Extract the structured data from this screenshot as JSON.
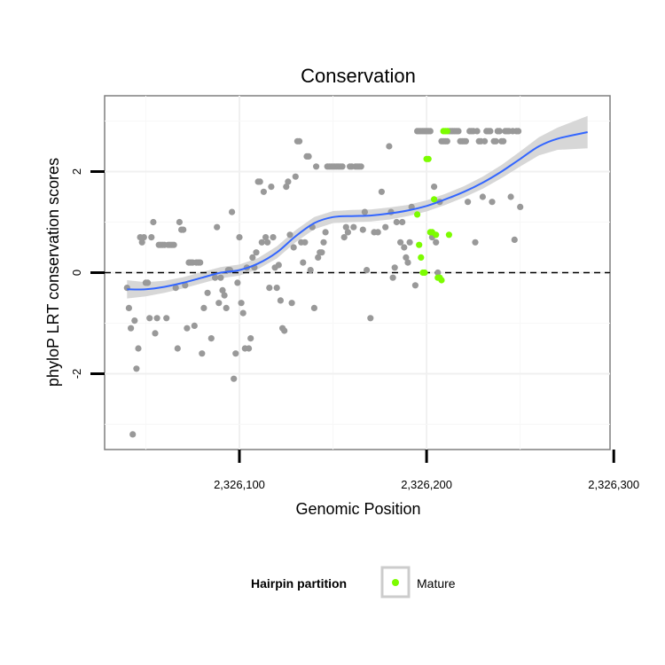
{
  "chart_data": {
    "type": "scatter",
    "title": "Conservation",
    "xlabel": "Genomic Position",
    "ylabel": "phyloP LRT conservation scores",
    "xlim": [
      2326028,
      2326298
    ],
    "ylim": [
      -3.5,
      3.5
    ],
    "x_ticks": [
      {
        "value": 2326100,
        "label": "2,326,100"
      },
      {
        "value": 2326200,
        "label": "2,326,200"
      },
      {
        "value": 2326300,
        "label": "2,326,300"
      }
    ],
    "y_ticks": [
      {
        "value": -2,
        "label": "-2"
      },
      {
        "value": 0,
        "label": "0"
      },
      {
        "value": 2,
        "label": "2"
      }
    ],
    "grid": true,
    "reference_line": {
      "y": 0,
      "style": "dashed"
    },
    "legend": {
      "title": "Hairpin partition",
      "position": "bottom",
      "entries": [
        {
          "name": "Mature",
          "color": "#7CFC00"
        }
      ]
    },
    "colors": {
      "other": "#999999",
      "mature": "#7CFC00",
      "smooth": "#3366FF",
      "band": "#D3D3D3"
    },
    "series": [
      {
        "group": "other",
        "points": [
          [
            2326040,
            -0.3
          ],
          [
            2326041,
            -0.7
          ],
          [
            2326042,
            -1.1
          ],
          [
            2326043,
            -3.2
          ],
          [
            2326044,
            -0.95
          ],
          [
            2326045,
            -1.9
          ],
          [
            2326046,
            -1.5
          ],
          [
            2326047,
            0.7
          ],
          [
            2326048,
            0.6
          ],
          [
            2326049,
            0.7
          ],
          [
            2326050,
            -0.2
          ],
          [
            2326051,
            -0.2
          ],
          [
            2326052,
            -0.9
          ],
          [
            2326053,
            0.7
          ],
          [
            2326054,
            1.0
          ],
          [
            2326055,
            -1.2
          ],
          [
            2326056,
            -0.9
          ],
          [
            2326057,
            0.55
          ],
          [
            2326058,
            0.55
          ],
          [
            2326059,
            0.55
          ],
          [
            2326060,
            0.55
          ],
          [
            2326061,
            -0.9
          ],
          [
            2326062,
            0.55
          ],
          [
            2326063,
            0.55
          ],
          [
            2326064,
            0.55
          ],
          [
            2326065,
            0.55
          ],
          [
            2326066,
            -0.3
          ],
          [
            2326067,
            -1.5
          ],
          [
            2326068,
            1.0
          ],
          [
            2326069,
            0.85
          ],
          [
            2326070,
            0.85
          ],
          [
            2326071,
            -0.25
          ],
          [
            2326072,
            -1.1
          ],
          [
            2326073,
            0.2
          ],
          [
            2326074,
            0.2
          ],
          [
            2326075,
            0.2
          ],
          [
            2326076,
            -1.05
          ],
          [
            2326077,
            0.2
          ],
          [
            2326078,
            0.2
          ],
          [
            2326079,
            0.2
          ],
          [
            2326080,
            -1.6
          ],
          [
            2326081,
            -0.7
          ],
          [
            2326083,
            -0.4
          ],
          [
            2326085,
            -1.3
          ],
          [
            2326087,
            -0.1
          ],
          [
            2326088,
            0.9
          ],
          [
            2326089,
            -0.6
          ],
          [
            2326090,
            -0.1
          ],
          [
            2326091,
            -0.35
          ],
          [
            2326092,
            -0.45
          ],
          [
            2326093,
            -0.7
          ],
          [
            2326094,
            0.05
          ],
          [
            2326095,
            0.05
          ],
          [
            2326096,
            1.2
          ],
          [
            2326097,
            -2.1
          ],
          [
            2326098,
            -1.6
          ],
          [
            2326099,
            -0.2
          ],
          [
            2326100,
            0.7
          ],
          [
            2326101,
            -0.6
          ],
          [
            2326102,
            -0.8
          ],
          [
            2326103,
            -1.5
          ],
          [
            2326104,
            0.1
          ],
          [
            2326105,
            -1.5
          ],
          [
            2326106,
            -1.3
          ],
          [
            2326107,
            0.3
          ],
          [
            2326108,
            0.1
          ],
          [
            2326109,
            0.4
          ],
          [
            2326110,
            1.8
          ],
          [
            2326111,
            1.8
          ],
          [
            2326112,
            0.6
          ],
          [
            2326113,
            1.6
          ],
          [
            2326114,
            0.7
          ],
          [
            2326115,
            0.6
          ],
          [
            2326116,
            -0.3
          ],
          [
            2326117,
            1.7
          ],
          [
            2326118,
            0.7
          ],
          [
            2326119,
            0.1
          ],
          [
            2326120,
            -0.3
          ],
          [
            2326121,
            0.15
          ],
          [
            2326122,
            -0.55
          ],
          [
            2326123,
            -1.1
          ],
          [
            2326124,
            -1.15
          ],
          [
            2326125,
            1.7
          ],
          [
            2326126,
            1.8
          ],
          [
            2326127,
            0.75
          ],
          [
            2326128,
            -0.6
          ],
          [
            2326129,
            0.5
          ],
          [
            2326130,
            1.9
          ],
          [
            2326131,
            2.6
          ],
          [
            2326132,
            2.6
          ],
          [
            2326133,
            0.6
          ],
          [
            2326134,
            0.2
          ],
          [
            2326135,
            0.6
          ],
          [
            2326136,
            2.3
          ],
          [
            2326137,
            2.3
          ],
          [
            2326138,
            0.05
          ],
          [
            2326139,
            0.9
          ],
          [
            2326140,
            -0.7
          ],
          [
            2326141,
            2.1
          ],
          [
            2326142,
            0.3
          ],
          [
            2326143,
            0.4
          ],
          [
            2326144,
            0.4
          ],
          [
            2326145,
            0.6
          ],
          [
            2326146,
            0.8
          ],
          [
            2326147,
            2.1
          ],
          [
            2326148,
            2.1
          ],
          [
            2326149,
            2.1
          ],
          [
            2326150,
            2.1
          ],
          [
            2326151,
            2.1
          ],
          [
            2326152,
            2.1
          ],
          [
            2326153,
            2.1
          ],
          [
            2326154,
            2.1
          ],
          [
            2326155,
            2.1
          ],
          [
            2326156,
            0.7
          ],
          [
            2326157,
            0.9
          ],
          [
            2326158,
            0.8
          ],
          [
            2326159,
            2.1
          ],
          [
            2326160,
            2.1
          ],
          [
            2326161,
            0.9
          ],
          [
            2326162,
            2.1
          ],
          [
            2326163,
            2.1
          ],
          [
            2326164,
            2.1
          ],
          [
            2326165,
            2.1
          ],
          [
            2326166,
            0.85
          ],
          [
            2326167,
            1.2
          ],
          [
            2326168,
            0.05
          ],
          [
            2326170,
            -0.9
          ],
          [
            2326172,
            0.8
          ],
          [
            2326174,
            0.8
          ],
          [
            2326176,
            1.6
          ],
          [
            2326178,
            0.9
          ],
          [
            2326180,
            2.5
          ],
          [
            2326181,
            1.2
          ],
          [
            2326182,
            -0.1
          ],
          [
            2326183,
            0.1
          ],
          [
            2326184,
            1.0
          ],
          [
            2326186,
            0.6
          ],
          [
            2326187,
            1.0
          ],
          [
            2326188,
            0.5
          ],
          [
            2326189,
            0.3
          ],
          [
            2326190,
            0.2
          ],
          [
            2326191,
            0.6
          ],
          [
            2326192,
            1.3
          ],
          [
            2326194,
            -0.25
          ],
          [
            2326195,
            2.8
          ],
          [
            2326196,
            2.8
          ],
          [
            2326197,
            2.8
          ],
          [
            2326198,
            2.8
          ],
          [
            2326199,
            2.8
          ],
          [
            2326200,
            2.8
          ],
          [
            2326201,
            2.8
          ],
          [
            2326202,
            2.8
          ],
          [
            2326203,
            0.7
          ],
          [
            2326204,
            1.7
          ],
          [
            2326205,
            0.6
          ],
          [
            2326206,
            0.0
          ],
          [
            2326207,
            1.4
          ],
          [
            2326208,
            2.6
          ],
          [
            2326209,
            2.6
          ],
          [
            2326210,
            2.6
          ],
          [
            2326211,
            2.6
          ],
          [
            2326212,
            2.8
          ],
          [
            2326213,
            2.8
          ],
          [
            2326214,
            2.8
          ],
          [
            2326215,
            2.8
          ],
          [
            2326216,
            2.8
          ],
          [
            2326217,
            2.8
          ],
          [
            2326218,
            2.6
          ],
          [
            2326219,
            2.6
          ],
          [
            2326220,
            2.6
          ],
          [
            2326221,
            2.6
          ],
          [
            2326222,
            1.4
          ],
          [
            2326223,
            2.8
          ],
          [
            2326224,
            2.8
          ],
          [
            2326225,
            2.8
          ],
          [
            2326226,
            0.6
          ],
          [
            2326227,
            2.8
          ],
          [
            2326228,
            2.6
          ],
          [
            2326229,
            2.6
          ],
          [
            2326230,
            1.5
          ],
          [
            2326231,
            2.6
          ],
          [
            2326232,
            2.8
          ],
          [
            2326233,
            2.8
          ],
          [
            2326234,
            2.8
          ],
          [
            2326235,
            1.4
          ],
          [
            2326236,
            2.6
          ],
          [
            2326237,
            2.6
          ],
          [
            2326238,
            2.8
          ],
          [
            2326239,
            2.8
          ],
          [
            2326240,
            2.6
          ],
          [
            2326241,
            2.6
          ],
          [
            2326242,
            2.8
          ],
          [
            2326243,
            2.8
          ],
          [
            2326244,
            2.8
          ],
          [
            2326245,
            1.5
          ],
          [
            2326246,
            2.8
          ],
          [
            2326247,
            0.65
          ],
          [
            2326248,
            2.8
          ],
          [
            2326249,
            2.8
          ],
          [
            2326250,
            1.3
          ]
        ]
      },
      {
        "group": "Mature",
        "points": [
          [
            2326195,
            1.15
          ],
          [
            2326196,
            0.55
          ],
          [
            2326197,
            0.3
          ],
          [
            2326198,
            0.0
          ],
          [
            2326199,
            0.0
          ],
          [
            2326200,
            2.25
          ],
          [
            2326201,
            2.25
          ],
          [
            2326202,
            0.8
          ],
          [
            2326203,
            0.8
          ],
          [
            2326204,
            1.45
          ],
          [
            2326205,
            0.75
          ],
          [
            2326206,
            -0.1
          ],
          [
            2326207,
            -0.1
          ],
          [
            2326208,
            -0.15
          ],
          [
            2326209,
            2.8
          ],
          [
            2326210,
            2.8
          ],
          [
            2326211,
            2.8
          ],
          [
            2326212,
            0.75
          ]
        ]
      }
    ],
    "smooth": [
      [
        2326040,
        -0.33
      ],
      [
        2326050,
        -0.33
      ],
      [
        2326060,
        -0.28
      ],
      [
        2326070,
        -0.2
      ],
      [
        2326080,
        -0.1
      ],
      [
        2326090,
        0.0
      ],
      [
        2326100,
        0.05
      ],
      [
        2326110,
        0.18
      ],
      [
        2326120,
        0.4
      ],
      [
        2326130,
        0.72
      ],
      [
        2326140,
        0.98
      ],
      [
        2326150,
        1.1
      ],
      [
        2326160,
        1.12
      ],
      [
        2326170,
        1.13
      ],
      [
        2326180,
        1.17
      ],
      [
        2326190,
        1.23
      ],
      [
        2326200,
        1.32
      ],
      [
        2326210,
        1.45
      ],
      [
        2326220,
        1.6
      ],
      [
        2326230,
        1.78
      ],
      [
        2326240,
        2.0
      ],
      [
        2326250,
        2.25
      ],
      [
        2326260,
        2.5
      ],
      [
        2326270,
        2.65
      ],
      [
        2326286,
        2.78
      ]
    ],
    "band_halfwidth": [
      0.18,
      0.14,
      0.12,
      0.11,
      0.11,
      0.11,
      0.11,
      0.11,
      0.12,
      0.12,
      0.12,
      0.12,
      0.12,
      0.12,
      0.12,
      0.11,
      0.11,
      0.11,
      0.11,
      0.12,
      0.13,
      0.15,
      0.18,
      0.22,
      0.32
    ]
  }
}
